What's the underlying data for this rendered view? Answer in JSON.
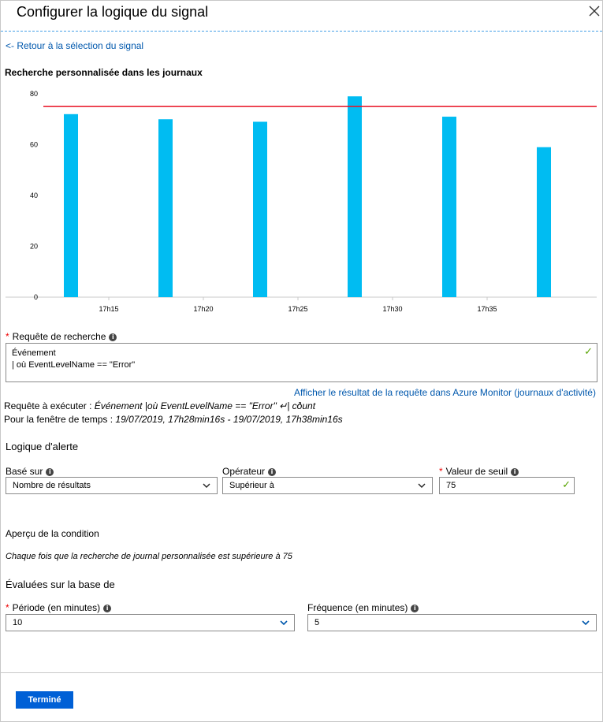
{
  "header": {
    "title": "Configurer la logique du signal",
    "back_link": "<- Retour à la sélection du signal"
  },
  "chart_section_title": "Recherche personnalisée dans les journaux",
  "chart_data": {
    "type": "bar",
    "categories": [
      "17h13",
      "17h18",
      "17h23",
      "17h28",
      "17h33",
      "17h38"
    ],
    "x_ticks": [
      "17h15",
      "17h20",
      "17h25",
      "17h30",
      "17h35"
    ],
    "values": [
      72,
      70,
      69,
      79,
      71,
      59
    ],
    "ylim": [
      0,
      80
    ],
    "y_ticks": [
      0,
      20,
      40,
      60,
      80
    ],
    "threshold": 75,
    "colors": {
      "bar": "#00bcf2",
      "threshold": "#e81123"
    }
  },
  "query": {
    "label": "Requête de recherche",
    "lines": [
      "Événement",
      "| où EventLevelName == \"Error\""
    ],
    "view_link": "Afficher le résultat de la requête dans Azure Monitor (journaux d'activité)",
    "run_label": "Requête à exécuter :",
    "run_value": "Événement |où EventLevelName == \"Error\" ↵| count",
    "window_label": "Pour la fenêtre de temps :",
    "window_value": "19/07/2019, 17h28min16s - 19/07/2019, 17h38min16s"
  },
  "alert_logic": {
    "title": "Logique d'alerte",
    "based_on_label": "Basé sur",
    "based_on_value": "Nombre de résultats",
    "operator_label": "Opérateur",
    "operator_value": "Supérieur à",
    "threshold_label": "Valeur de seuil",
    "threshold_value": "75"
  },
  "condition": {
    "title": "Aperçu de la condition",
    "text": "Chaque fois que la recherche de journal personnalisée est supérieure à 75"
  },
  "evaluated": {
    "title": "Évaluées sur la base de",
    "period_label": "Période (en minutes)",
    "period_value": "10",
    "frequency_label": "Fréquence (en minutes)",
    "frequency_value": "5"
  },
  "footer": {
    "done_label": "Terminé"
  }
}
